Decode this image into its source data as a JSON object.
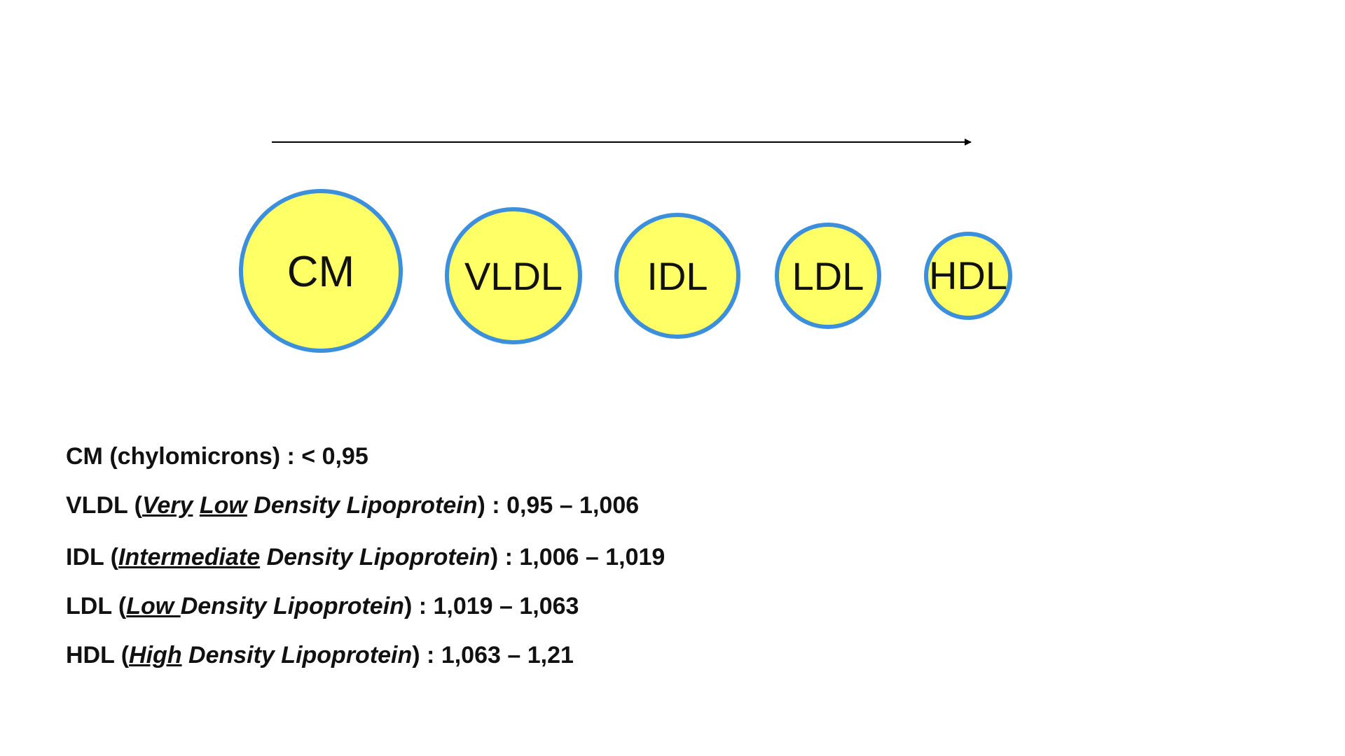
{
  "diagram": {
    "arrow_color": "#000000",
    "circle_fill": "#ffff66",
    "circle_stroke": "#3b8fdc",
    "particles": [
      {
        "label": "CM"
      },
      {
        "label": "VLDL"
      },
      {
        "label": "IDL"
      },
      {
        "label": "LDL"
      },
      {
        "label": "HDL"
      }
    ]
  },
  "legend": {
    "cm": {
      "abbr": "CM",
      "open": " (chylomicrons) : ",
      "range": "< 0,95"
    },
    "vldl": {
      "abbr": "VLDL",
      "open": " (",
      "w1": "Very",
      "s1": " ",
      "w2": "Low",
      "rest": " Density Lipoprotein",
      "close": ") : ",
      "range": "0,95 – 1,006"
    },
    "idl": {
      "abbr": "IDL",
      "open": " (",
      "w1": "Intermediate",
      "rest": " Density Lipoprotein",
      "close": ") : ",
      "range": "1,006 – 1,019"
    },
    "ldl": {
      "abbr": "LDL",
      "open": " (",
      "w1": "Low ",
      "rest": "Density Lipoprotein",
      "close": ") : ",
      "range": "1,019 – 1,063"
    },
    "hdl": {
      "abbr": "HDL",
      "open": " (",
      "w1": "High",
      "rest": " Density Lipoprotein",
      "close": ") : ",
      "range": "1,063 – 1,21"
    }
  }
}
